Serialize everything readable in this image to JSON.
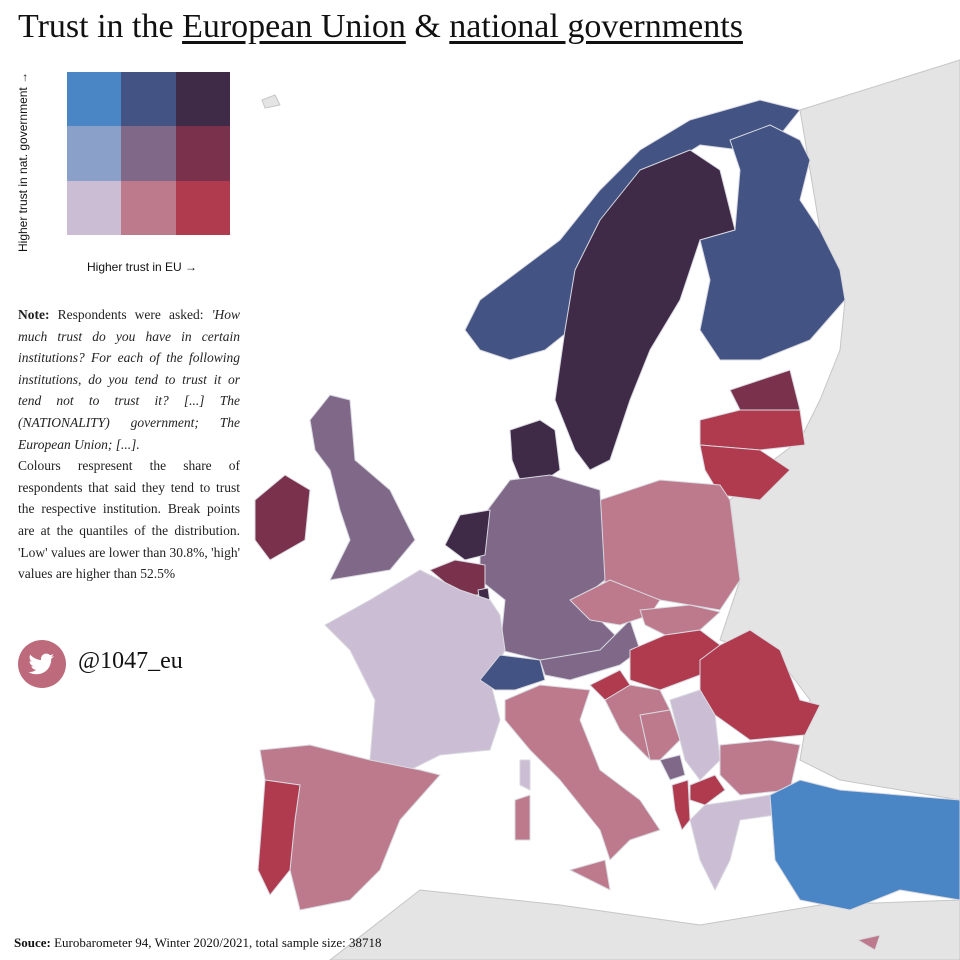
{
  "title": {
    "prefix": "Trust in the ",
    "part1": "European Union",
    "mid": " & ",
    "part2": "national governments"
  },
  "legend": {
    "y_label": "Higher trust in nat. government  →",
    "x_label": "Higher trust in EU  →",
    "colors": [
      [
        "#4a86c5",
        "#435484",
        "#3f2a48"
      ],
      [
        "#8aa0c9",
        "#806888",
        "#7a324c"
      ],
      [
        "#cbbdd3",
        "#bd7a8c",
        "#b03a4e"
      ]
    ]
  },
  "note": {
    "label": "Note:",
    "intro": " Respondents were asked: ",
    "quote": "'How much trust do you have in certain institutions? For each of the following institutions, do you tend to trust it or tend not to trust it? [...] The (NATIONALITY) government; The European Union; [...].",
    "body": "Colours respresent the share of respondents that said they tend to trust the respective institution. Break points are at the quantiles of the distribution. 'Low' values are lower than 30.8%, 'high' values are higher than 52.5%"
  },
  "social": {
    "icon": "twitter-bird-icon",
    "handle": "@1047_eu",
    "color": "#bd6b7c"
  },
  "source": {
    "label": "Souce:",
    "text": " Eurobarometer 94, Winter 2020/2021, total sample size: 38718"
  },
  "map": {
    "no_data_color": "#e4e4e4",
    "regions": [
      {
        "id": "norway",
        "eu": "mid",
        "gov": "high"
      },
      {
        "id": "sweden",
        "eu": "high",
        "gov": "high"
      },
      {
        "id": "finland",
        "eu": "mid",
        "gov": "high"
      },
      {
        "id": "denmark",
        "eu": "high",
        "gov": "high"
      },
      {
        "id": "estonia",
        "eu": "high",
        "gov": "mid"
      },
      {
        "id": "latvia",
        "eu": "high",
        "gov": "low"
      },
      {
        "id": "lithuania",
        "eu": "high",
        "gov": "low"
      },
      {
        "id": "poland",
        "eu": "mid",
        "gov": "low"
      },
      {
        "id": "germany",
        "eu": "mid",
        "gov": "mid"
      },
      {
        "id": "netherlands",
        "eu": "high",
        "gov": "high"
      },
      {
        "id": "belgium",
        "eu": "high",
        "gov": "mid"
      },
      {
        "id": "luxembourg",
        "eu": "high",
        "gov": "high"
      },
      {
        "id": "france",
        "eu": "low",
        "gov": "low"
      },
      {
        "id": "united-kingdom",
        "eu": "mid",
        "gov": "mid"
      },
      {
        "id": "ireland",
        "eu": "high",
        "gov": "mid"
      },
      {
        "id": "switzerland",
        "eu": "mid",
        "gov": "high"
      },
      {
        "id": "austria",
        "eu": "mid",
        "gov": "mid"
      },
      {
        "id": "czechia",
        "eu": "mid",
        "gov": "low"
      },
      {
        "id": "slovakia",
        "eu": "mid",
        "gov": "low"
      },
      {
        "id": "hungary",
        "eu": "high",
        "gov": "low"
      },
      {
        "id": "romania",
        "eu": "high",
        "gov": "low"
      },
      {
        "id": "slovenia",
        "eu": "high",
        "gov": "low"
      },
      {
        "id": "croatia",
        "eu": "mid",
        "gov": "low"
      },
      {
        "id": "bosnia",
        "eu": "mid",
        "gov": "low"
      },
      {
        "id": "serbia",
        "eu": "low",
        "gov": "low"
      },
      {
        "id": "montenegro",
        "eu": "mid",
        "gov": "mid"
      },
      {
        "id": "albania",
        "eu": "high",
        "gov": "low"
      },
      {
        "id": "north-macedonia",
        "eu": "high",
        "gov": "low"
      },
      {
        "id": "bulgaria",
        "eu": "mid",
        "gov": "low"
      },
      {
        "id": "greece",
        "eu": "low",
        "gov": "low"
      },
      {
        "id": "turkey",
        "eu": "low",
        "gov": "high"
      },
      {
        "id": "italy",
        "eu": "mid",
        "gov": "low"
      },
      {
        "id": "sicily",
        "eu": "mid",
        "gov": "low"
      },
      {
        "id": "sardinia",
        "eu": "mid",
        "gov": "low"
      },
      {
        "id": "corsica",
        "eu": "low",
        "gov": "low"
      },
      {
        "id": "spain",
        "eu": "mid",
        "gov": "low"
      },
      {
        "id": "portugal",
        "eu": "high",
        "gov": "low"
      },
      {
        "id": "cyprus",
        "eu": "mid",
        "gov": "low"
      }
    ]
  }
}
